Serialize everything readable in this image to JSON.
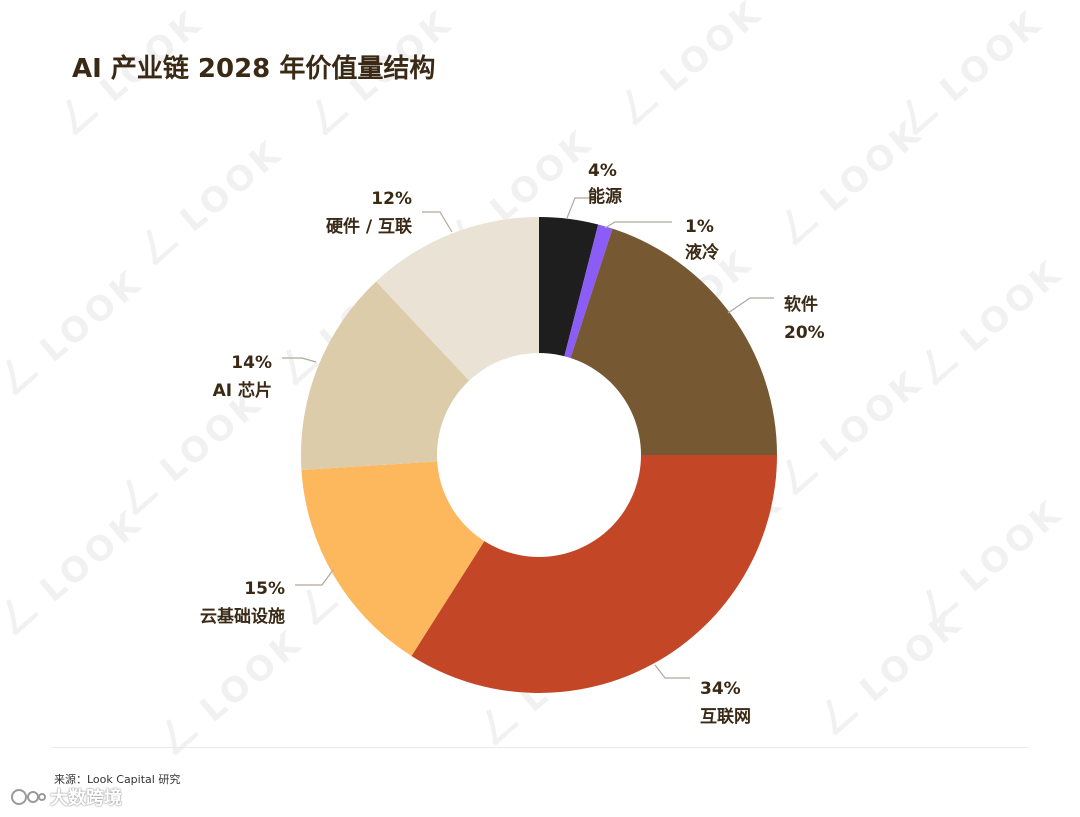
{
  "title": "AI 产业链 2028 年价值量结构",
  "source": "来源：Look Capital 研究",
  "brand": "大数跨境",
  "watermark_text": "LOOK",
  "chart_data": {
    "type": "pie",
    "donut": true,
    "title": "AI 产业链 2028 年价值量结构",
    "slices": [
      {
        "label": "能源",
        "value": 4,
        "value_text": "4%",
        "color": "#1e1e1e"
      },
      {
        "label": "液冷",
        "value": 1,
        "value_text": "1%",
        "color": "#8b5cf6"
      },
      {
        "label": "软件",
        "value": 20,
        "value_text": "20%",
        "color": "#765832"
      },
      {
        "label": "互联网",
        "value": 34,
        "value_text": "34%",
        "color": "#c34627"
      },
      {
        "label": "云基础设施",
        "value": 15,
        "value_text": "15%",
        "color": "#fdb75c"
      },
      {
        "label": "AI 芯片",
        "value": 14,
        "value_text": "14%",
        "color": "#dccca9"
      },
      {
        "label": "硬件 / 互联",
        "value": 12,
        "value_text": "12%",
        "color": "#e9e2d5"
      }
    ]
  }
}
